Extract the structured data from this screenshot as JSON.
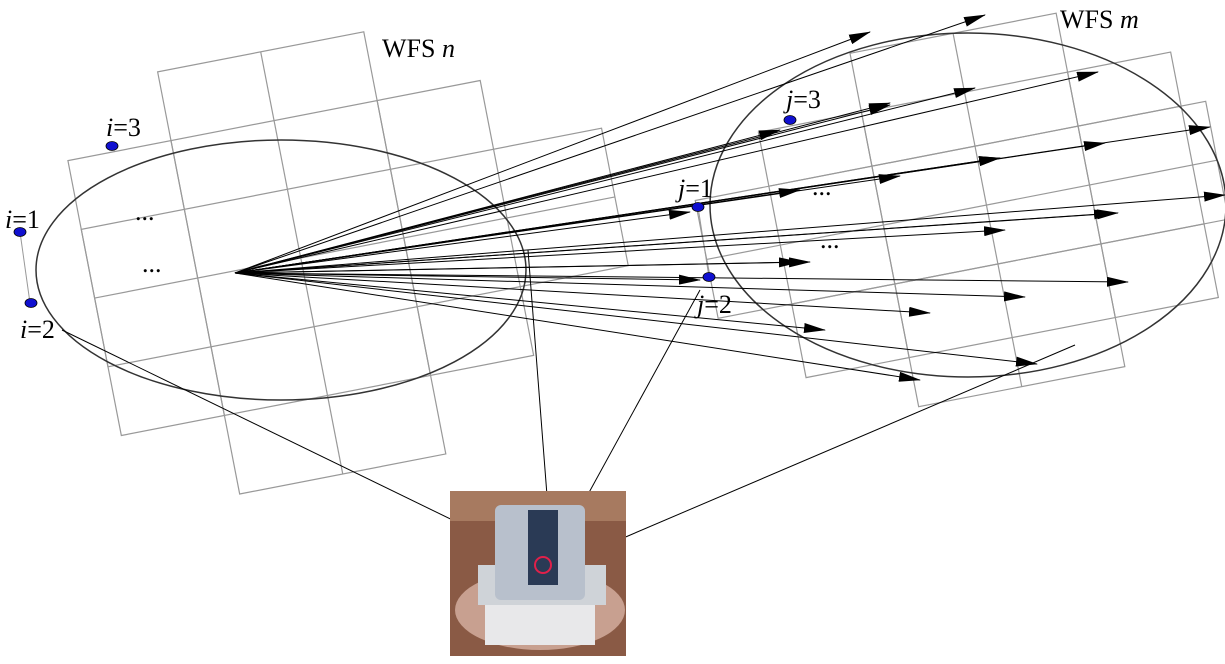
{
  "sensors": [
    {
      "name": "WFS",
      "index": "n"
    },
    {
      "name": "WFS",
      "index": "m"
    }
  ],
  "points": [
    {
      "var": "i",
      "rest": "=1"
    },
    {
      "var": "i",
      "rest": "=2"
    },
    {
      "var": "i",
      "rest": "=3"
    },
    {
      "var": "j",
      "rest": "=1"
    },
    {
      "var": "j",
      "rest": "=2"
    },
    {
      "var": "j",
      "rest": "=3"
    }
  ],
  "ellipses": [
    "...",
    "...",
    "...",
    "..."
  ]
}
